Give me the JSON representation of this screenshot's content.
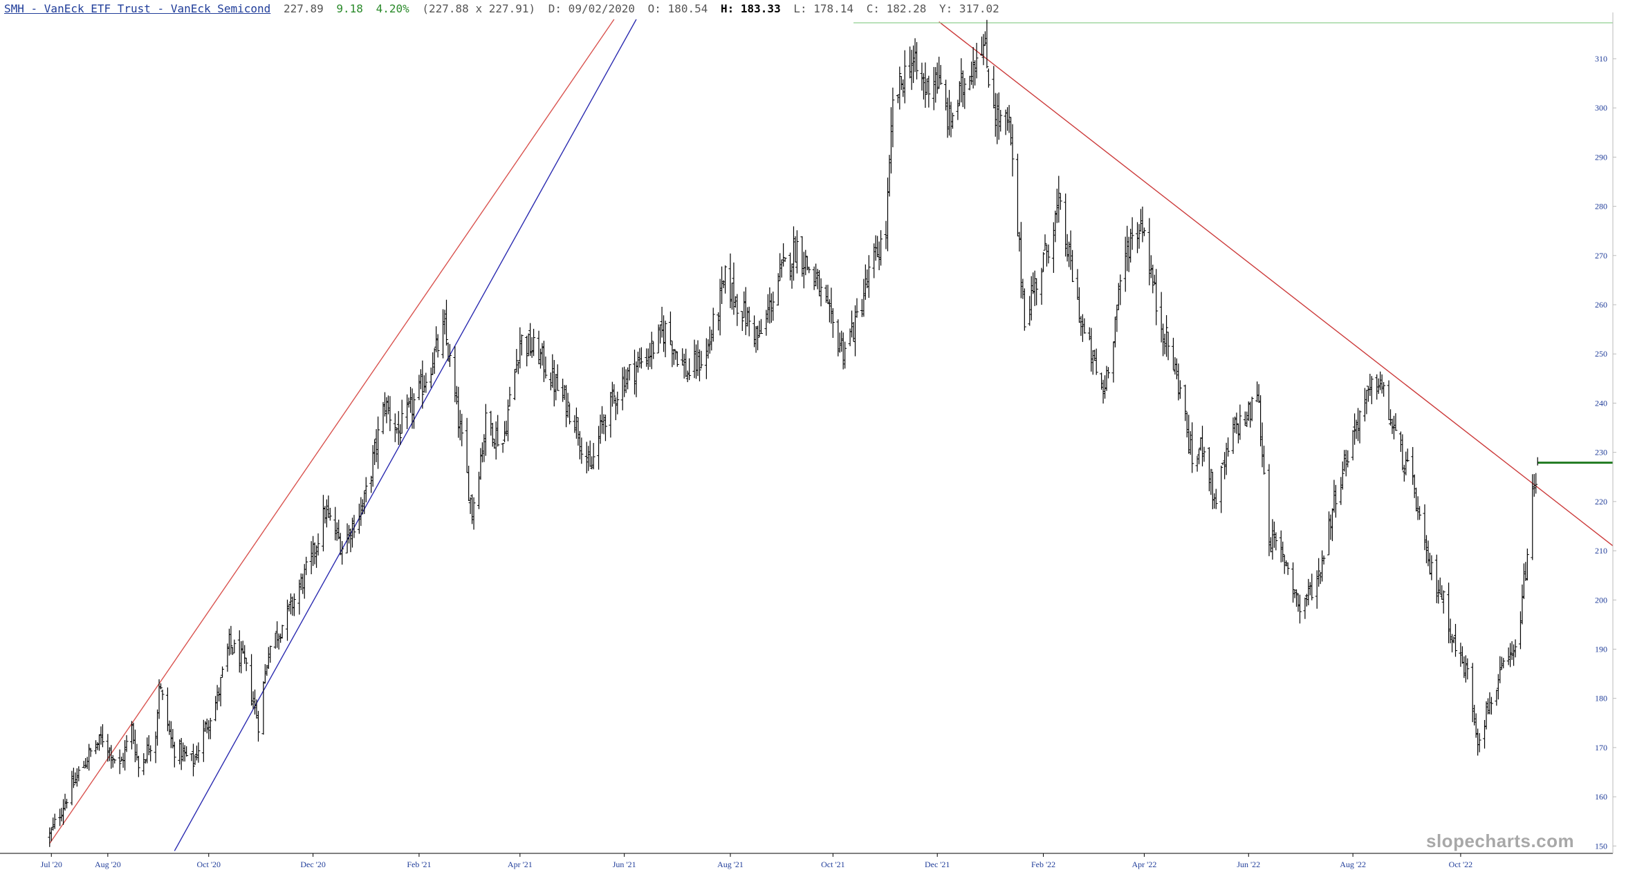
{
  "header": {
    "symbol": "SMH - VanEck ETF Trust - VanEck Semicond",
    "last": "227.89",
    "change": "9.18",
    "change_pct": "4.20%",
    "bid_ask": "(227.88 x 227.91)",
    "date": "D: 09/02/2020",
    "open": "O: 180.54",
    "high": "H: 183.33",
    "low": "L: 178.14",
    "close": "C: 182.28",
    "year_high": "Y: 317.02"
  },
  "watermark": "slopecharts.com",
  "colors": {
    "bars": "#000000",
    "upper_channel": "#d9534f",
    "lower_channel": "#2b2bb0",
    "downtrend": "#cc3a3a",
    "resistance": "#8fcf8f",
    "price_marker": "#1f7a1f",
    "axis_text": "#1f3c99"
  },
  "chart_data": {
    "type": "ohlc",
    "ylim": [
      148.5,
      318
    ],
    "y_ticks": [
      150,
      160,
      170,
      180,
      190,
      200,
      210,
      220,
      230,
      240,
      250,
      260,
      270,
      280,
      290,
      300,
      310
    ],
    "x_ticks": [
      "Jul '20",
      "Aug '20",
      "Oct '20",
      "Dec '20",
      "Feb '21",
      "Apr '21",
      "Jun '21",
      "Aug '21",
      "Oct '21",
      "Dec '21",
      "Feb '22",
      "Apr '22",
      "Jun '22",
      "Aug '22",
      "Oct '22"
    ],
    "x_tick_dates": [
      "2020-07-01",
      "2020-08-03",
      "2020-10-01",
      "2020-12-01",
      "2021-02-01",
      "2021-04-01",
      "2021-06-01",
      "2021-08-02",
      "2021-10-01",
      "2021-12-01",
      "2022-02-01",
      "2022-04-01",
      "2022-06-01",
      "2022-08-01",
      "2022-10-03"
    ],
    "close_path": [
      [
        "2020-06-30",
        152
      ],
      [
        "2020-07-10",
        160
      ],
      [
        "2020-07-22",
        168
      ],
      [
        "2020-07-31",
        172
      ],
      [
        "2020-08-10",
        166
      ],
      [
        "2020-08-17",
        174
      ],
      [
        "2020-08-21",
        166
      ],
      [
        "2020-08-31",
        173
      ],
      [
        "2020-09-02",
        183
      ],
      [
        "2020-09-10",
        170
      ],
      [
        "2020-09-22",
        167
      ],
      [
        "2020-09-30",
        175
      ],
      [
        "2020-10-06",
        180
      ],
      [
        "2020-10-13",
        191
      ],
      [
        "2020-10-22",
        187
      ],
      [
        "2020-10-30",
        175
      ],
      [
        "2020-11-05",
        190
      ],
      [
        "2020-11-16",
        197
      ],
      [
        "2020-11-30",
        208
      ],
      [
        "2020-12-08",
        218
      ],
      [
        "2020-12-18",
        211
      ],
      [
        "2020-12-31",
        220
      ],
      [
        "2021-01-12",
        240
      ],
      [
        "2021-01-20",
        234
      ],
      [
        "2021-02-01",
        242
      ],
      [
        "2021-02-16",
        255
      ],
      [
        "2021-02-26",
        232
      ],
      [
        "2021-03-04",
        218
      ],
      [
        "2021-03-12",
        236
      ],
      [
        "2021-03-22",
        232
      ],
      [
        "2021-04-01",
        253
      ],
      [
        "2021-04-12",
        250
      ],
      [
        "2021-04-21",
        244
      ],
      [
        "2021-05-03",
        237
      ],
      [
        "2021-05-12",
        226
      ],
      [
        "2021-05-20",
        237
      ],
      [
        "2021-06-01",
        245
      ],
      [
        "2021-06-15",
        250
      ],
      [
        "2021-06-25",
        255
      ],
      [
        "2021-07-08",
        246
      ],
      [
        "2021-07-19",
        250
      ],
      [
        "2021-07-30",
        265
      ],
      [
        "2021-08-12",
        257
      ],
      [
        "2021-08-19",
        253
      ],
      [
        "2021-08-31",
        266
      ],
      [
        "2021-09-10",
        272
      ],
      [
        "2021-09-22",
        264
      ],
      [
        "2021-09-30",
        256
      ],
      [
        "2021-10-07",
        251
      ],
      [
        "2021-10-14",
        256
      ],
      [
        "2021-10-22",
        266
      ],
      [
        "2021-11-01",
        275
      ],
      [
        "2021-11-05",
        300
      ],
      [
        "2021-11-15",
        310
      ],
      [
        "2021-11-24",
        304
      ],
      [
        "2021-11-30",
        307
      ],
      [
        "2021-12-08",
        297
      ],
      [
        "2021-12-20",
        308
      ],
      [
        "2021-12-27",
        314
      ],
      [
        "2022-01-05",
        298
      ],
      [
        "2022-01-12",
        296
      ],
      [
        "2022-01-21",
        258
      ],
      [
        "2022-02-02",
        270
      ],
      [
        "2022-02-10",
        280
      ],
      [
        "2022-02-18",
        266
      ],
      [
        "2022-02-24",
        255
      ],
      [
        "2022-03-08",
        242
      ],
      [
        "2022-03-22",
        272
      ],
      [
        "2022-03-31",
        277
      ],
      [
        "2022-04-08",
        260
      ],
      [
        "2022-04-22",
        243
      ],
      [
        "2022-04-29",
        228
      ],
      [
        "2022-05-06",
        232
      ],
      [
        "2022-05-12",
        220
      ],
      [
        "2022-05-24",
        235
      ],
      [
        "2022-06-02",
        238
      ],
      [
        "2022-06-06",
        243
      ],
      [
        "2022-06-13",
        213
      ],
      [
        "2022-06-24",
        207
      ],
      [
        "2022-07-01",
        198
      ],
      [
        "2022-07-12",
        205
      ],
      [
        "2022-07-22",
        222
      ],
      [
        "2022-08-05",
        238
      ],
      [
        "2022-08-16",
        245
      ],
      [
        "2022-08-26",
        233
      ],
      [
        "2022-09-06",
        222
      ],
      [
        "2022-09-13",
        208
      ],
      [
        "2022-09-22",
        201
      ],
      [
        "2022-09-30",
        190
      ],
      [
        "2022-10-07",
        185
      ],
      [
        "2022-10-13",
        172
      ],
      [
        "2022-10-21",
        180
      ],
      [
        "2022-10-28",
        186
      ],
      [
        "2022-11-04",
        189
      ],
      [
        "2022-11-10",
        206
      ],
      [
        "2022-11-14",
        221
      ],
      [
        "2022-11-16",
        224
      ]
    ],
    "trendlines": [
      {
        "role": "upper_channel",
        "from": [
          "2020-06-30",
          150.5
        ],
        "to": [
          "2021-05-26",
          318
        ]
      },
      {
        "role": "lower_channel",
        "from": [
          "2020-09-11",
          149
        ],
        "to": [
          "2021-06-08",
          318
        ]
      },
      {
        "role": "downtrend",
        "from": [
          "2021-12-02",
          317.5
        ],
        "to": [
          "2022-12-31",
          211
        ]
      },
      {
        "role": "resistance",
        "from": [
          "2021-10-13",
          317.3
        ],
        "to": [
          "2022-12-31",
          317.3
        ]
      }
    ],
    "current_price_marker": {
      "date_from": "2022-11-17",
      "date_to": "2022-12-31",
      "value": 227.89
    }
  }
}
